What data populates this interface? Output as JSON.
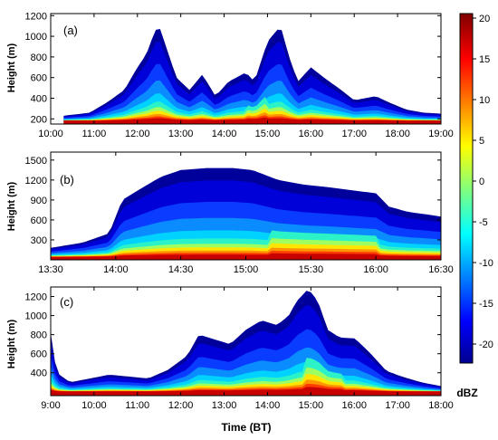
{
  "chart_data": {
    "type": "heatmap",
    "colorbar": {
      "unit": "dBZ",
      "range": [
        -22,
        20
      ],
      "ticks": [
        "20",
        "15",
        "10",
        "5",
        "0",
        "-5",
        "-10",
        "-15",
        "-20"
      ]
    },
    "xlabel": "Time (BT)",
    "panels": [
      {
        "label": "(a)",
        "ylabel": "Height (m)",
        "x_ticks": [
          "10:00",
          "11:00",
          "12:00",
          "13:00",
          "14:00",
          "15:00",
          "16:00",
          "17:00",
          "18:00",
          "19:00"
        ],
        "x_range_hours": [
          10,
          19
        ],
        "y_ticks": [
          "200",
          "400",
          "600",
          "800",
          "1000",
          "1200"
        ],
        "y_tick_values": [
          200,
          400,
          600,
          800,
          1000,
          1200
        ],
        "ylim": [
          150,
          1220
        ],
        "echo_top": [
          [
            10.3,
            230
          ],
          [
            10.9,
            260
          ],
          [
            11.3,
            360
          ],
          [
            11.7,
            480
          ],
          [
            12.0,
            700
          ],
          [
            12.2,
            820
          ],
          [
            12.4,
            1050
          ],
          [
            12.5,
            1100
          ],
          [
            12.7,
            850
          ],
          [
            12.9,
            600
          ],
          [
            13.2,
            480
          ],
          [
            13.5,
            630
          ],
          [
            13.8,
            420
          ],
          [
            14.1,
            560
          ],
          [
            14.5,
            650
          ],
          [
            14.7,
            560
          ],
          [
            15.0,
            950
          ],
          [
            15.3,
            1100
          ],
          [
            15.5,
            800
          ],
          [
            15.7,
            560
          ],
          [
            16.0,
            700
          ],
          [
            16.3,
            600
          ],
          [
            16.7,
            480
          ],
          [
            17.0,
            380
          ],
          [
            17.5,
            420
          ],
          [
            17.8,
            360
          ],
          [
            18.2,
            290
          ],
          [
            18.6,
            260
          ],
          [
            19.0,
            250
          ]
        ],
        "base_height": 180,
        "max_dbz_time": [
          14.5,
          15.0
        ]
      },
      {
        "label": "(b)",
        "ylabel": "Height (m)",
        "x_ticks": [
          "13:30",
          "14:00",
          "14:30",
          "15:00",
          "15:30",
          "16:00",
          "16:30"
        ],
        "x_range_hours": [
          13.5,
          16.5
        ],
        "y_ticks": [
          "300",
          "600",
          "900",
          "1200",
          "1500"
        ],
        "y_tick_values": [
          300,
          600,
          900,
          1200,
          1500
        ],
        "ylim": [
          0,
          1620
        ],
        "echo_top": [
          [
            13.5,
            180
          ],
          [
            13.75,
            260
          ],
          [
            13.95,
            400
          ],
          [
            14.05,
            900
          ],
          [
            14.2,
            1080
          ],
          [
            14.35,
            1250
          ],
          [
            14.5,
            1350
          ],
          [
            14.7,
            1380
          ],
          [
            14.9,
            1380
          ],
          [
            15.05,
            1350
          ],
          [
            15.25,
            1200
          ],
          [
            15.45,
            1130
          ],
          [
            15.6,
            1100
          ],
          [
            15.8,
            1050
          ],
          [
            16.0,
            1000
          ],
          [
            16.1,
            800
          ],
          [
            16.25,
            720
          ],
          [
            16.4,
            680
          ],
          [
            16.5,
            650
          ]
        ],
        "base_height": 40,
        "max_dbz_time": [
          15.2,
          16.0
        ]
      },
      {
        "label": "(c)",
        "ylabel": "Height (m)",
        "x_ticks": [
          "9:00",
          "10:00",
          "11:00",
          "12:00",
          "13:00",
          "14:00",
          "15:00",
          "16:00",
          "17:00",
          "18:00"
        ],
        "x_range_hours": [
          9,
          19
        ],
        "y_ticks": [
          "400",
          "600",
          "800",
          "1000",
          "1200"
        ],
        "y_tick_values": [
          400,
          600,
          800,
          1000,
          1200
        ],
        "ylim": [
          160,
          1300
        ],
        "echo_top": [
          [
            9.0,
            820
          ],
          [
            9.15,
            400
          ],
          [
            9.5,
            300
          ],
          [
            10.0,
            340
          ],
          [
            10.5,
            380
          ],
          [
            11.0,
            360
          ],
          [
            11.5,
            340
          ],
          [
            12.0,
            430
          ],
          [
            12.5,
            580
          ],
          [
            12.8,
            800
          ],
          [
            13.2,
            750
          ],
          [
            13.6,
            700
          ],
          [
            14.0,
            850
          ],
          [
            14.4,
            950
          ],
          [
            14.8,
            900
          ],
          [
            15.1,
            1000
          ],
          [
            15.3,
            1150
          ],
          [
            15.6,
            1280
          ],
          [
            15.85,
            1150
          ],
          [
            16.1,
            850
          ],
          [
            16.4,
            770
          ],
          [
            16.8,
            760
          ],
          [
            17.2,
            600
          ],
          [
            17.6,
            420
          ],
          [
            18.0,
            360
          ],
          [
            18.5,
            300
          ],
          [
            19.0,
            260
          ]
        ],
        "base_height": 200,
        "max_dbz_time": [
          15.5,
          16.5
        ]
      }
    ]
  }
}
